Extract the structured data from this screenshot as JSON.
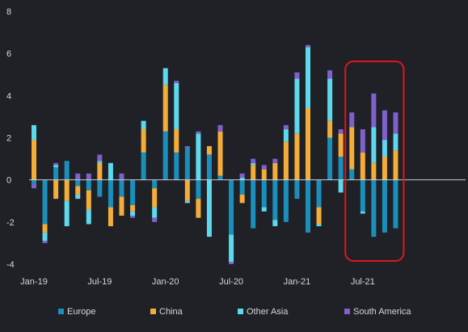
{
  "chart_data": {
    "type": "bar",
    "stacked": true,
    "title": "",
    "xlabel": "",
    "ylabel": "",
    "ylim": [
      -4,
      8
    ],
    "yticks": [
      -4,
      -2,
      0,
      2,
      4,
      6,
      8
    ],
    "grid": false,
    "legend_position": "bottom",
    "categories": [
      "2019-01",
      "2019-02",
      "2019-03",
      "2019-04",
      "2019-05",
      "2019-06",
      "2019-07",
      "2019-08",
      "2019-09",
      "2019-10",
      "2019-11",
      "2019-12",
      "2020-01",
      "2020-02",
      "2020-03",
      "2020-04",
      "2020-05",
      "2020-06",
      "2020-07",
      "2020-08",
      "2020-09",
      "2020-10",
      "2020-11",
      "2020-12",
      "2021-01",
      "2021-02",
      "2021-03",
      "2021-04",
      "2021-05",
      "2021-06",
      "2021-07",
      "2021-08",
      "2021-09",
      "2021-10"
    ],
    "x_tick_labels": [
      {
        "category": "2019-01",
        "label": "Jan-19"
      },
      {
        "category": "2019-07",
        "label": "Jul-19"
      },
      {
        "category": "2020-01",
        "label": "Jan-20"
      },
      {
        "category": "2020-07",
        "label": "Jul-20"
      },
      {
        "category": "2021-01",
        "label": "Jan-21"
      },
      {
        "category": "2021-07",
        "label": "Jul-21"
      }
    ],
    "series": [
      {
        "name": "Europe",
        "color": "#1b8fbc",
        "values": [
          -0.2,
          -2.1,
          0.6,
          0.9,
          -0.3,
          -0.5,
          -0.8,
          -1.3,
          -0.8,
          -1.2,
          1.3,
          -0.4,
          2.3,
          1.3,
          1.5,
          -0.9,
          1.2,
          0.2,
          -2.6,
          -0.7,
          -2.3,
          -1.3,
          -1.9,
          -2.0,
          -0.9,
          -2.5,
          -1.3,
          2.0,
          1.1,
          0.5,
          -1.5,
          -2.7,
          -2.5,
          -2.3
        ]
      },
      {
        "name": "China",
        "color": "#f5ad3a",
        "values": [
          1.9,
          -0.4,
          -0.9,
          -1.0,
          -0.4,
          -0.9,
          0.8,
          -0.9,
          -0.9,
          -0.3,
          1.1,
          -0.9,
          2.2,
          1.1,
          -1.0,
          -0.9,
          0.4,
          2.1,
          0.0,
          -0.4,
          0.7,
          0.5,
          0.8,
          1.8,
          2.2,
          3.4,
          -0.8,
          0.8,
          1.1,
          2.0,
          1.3,
          0.8,
          1.1,
          1.4
        ]
      },
      {
        "name": "Other Asia",
        "color": "#5dd8ec",
        "values": [
          0.7,
          -0.4,
          0.1,
          -1.2,
          -0.2,
          -0.7,
          0.1,
          0.8,
          0.0,
          -0.2,
          0.4,
          -0.5,
          0.8,
          2.2,
          -0.1,
          2.2,
          -2.7,
          0.0,
          -1.3,
          0.1,
          0.1,
          -0.2,
          -0.3,
          0.6,
          2.6,
          2.9,
          -0.1,
          2.0,
          -0.6,
          0.0,
          -0.1,
          1.7,
          0.8,
          0.8
        ]
      },
      {
        "name": "South America",
        "color": "#8060cc",
        "values": [
          -0.2,
          -0.1,
          0.1,
          0.0,
          0.3,
          0.3,
          0.3,
          0.0,
          0.3,
          -0.1,
          0.0,
          -0.2,
          0.0,
          0.1,
          0.1,
          0.1,
          0.0,
          0.3,
          -0.1,
          0.2,
          0.2,
          0.2,
          0.2,
          0.2,
          0.3,
          0.1,
          0.0,
          0.4,
          0.2,
          0.7,
          1.1,
          1.6,
          1.4,
          1.0
        ]
      }
    ],
    "highlight": {
      "from": "2021-06",
      "to": "2021-10",
      "color": "#e0161c"
    }
  }
}
